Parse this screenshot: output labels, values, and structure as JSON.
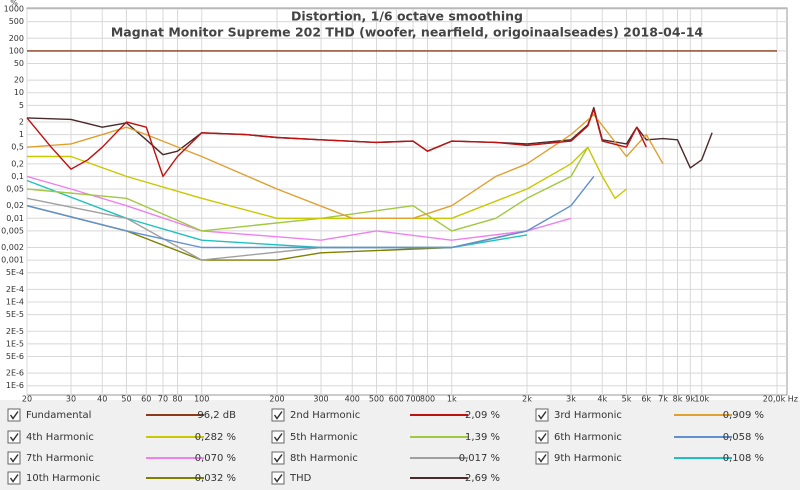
{
  "chart_data": {
    "type": "line",
    "title": "Distortion, 1/6 octave smoothing",
    "subtitle": "Magnat Monitor Supreme 202 THD (woofer, nearfield, origoinaalseades) 2018-04-14",
    "y_label": "%",
    "log_x": true,
    "log_y": true,
    "grid": true,
    "xlim": [
      20,
      20000
    ],
    "ylim": [
      6e-07,
      1000
    ],
    "xticks": [
      20,
      30,
      40,
      50,
      60,
      70,
      80,
      100,
      200,
      300,
      400,
      500,
      600,
      700,
      800,
      {
        "value": 1000,
        "label": "1k"
      },
      {
        "value": 2000,
        "label": "2k"
      },
      {
        "value": 3000,
        "label": "3k"
      },
      {
        "value": 4000,
        "label": "4k"
      },
      {
        "value": 5000,
        "label": "5k"
      },
      {
        "value": 6000,
        "label": "6k"
      },
      {
        "value": 7000,
        "label": "7k"
      },
      {
        "value": 8000,
        "label": "8k"
      },
      {
        "value": 9000,
        "label": "9k"
      },
      {
        "value": 10000,
        "label": "10k"
      },
      {
        "value": 20000,
        "label": "20,0k Hz"
      }
    ],
    "yticks": [
      1000,
      500,
      200,
      100,
      50,
      20,
      10,
      5,
      2,
      1,
      {
        "value": 0.5,
        "label": "0,5"
      },
      {
        "value": 0.2,
        "label": "0,2"
      },
      {
        "value": 0.1,
        "label": "0,1"
      },
      {
        "value": 0.05,
        "label": "0,05"
      },
      {
        "value": 0.02,
        "label": "0,02"
      },
      {
        "value": 0.01,
        "label": "0,01"
      },
      {
        "value": 0.005,
        "label": "0,005"
      },
      {
        "value": 0.002,
        "label": "0,002"
      },
      {
        "value": 0.001,
        "label": "0,001"
      },
      {
        "value": 0.0005,
        "label": "5E-4"
      },
      {
        "value": 0.0002,
        "label": "2E-4"
      },
      {
        "value": 0.0001,
        "label": "1E-4"
      },
      {
        "value": 5e-05,
        "label": "5E-5"
      },
      {
        "value": 2e-05,
        "label": "2E-5"
      },
      {
        "value": 1e-05,
        "label": "1E-5"
      },
      {
        "value": 5e-06,
        "label": "5E-6"
      },
      {
        "value": 2e-06,
        "label": "2E-6"
      },
      {
        "value": 1e-06,
        "label": "1E-6"
      }
    ],
    "series": [
      {
        "name": "Fundamental",
        "color": "#8b3a1a",
        "readout": "96,2 dB",
        "x": [
          20,
          20000
        ],
        "values": [
          100,
          100
        ]
      },
      {
        "name": "2nd Harmonic",
        "color": "#c01010",
        "readout": "2,09 %",
        "x": [
          20,
          25,
          30,
          35,
          40,
          50,
          60,
          70,
          80,
          100,
          150,
          200,
          300,
          500,
          700,
          800,
          1000,
          1500,
          2000,
          3000,
          3500,
          3700,
          4000,
          5000,
          5500,
          6000
        ],
        "values": [
          2.5,
          0.5,
          0.15,
          0.25,
          0.5,
          2,
          1.5,
          0.1,
          0.3,
          1.1,
          1,
          0.85,
          0.75,
          0.65,
          0.7,
          0.4,
          0.7,
          0.65,
          0.55,
          0.7,
          1.6,
          4,
          0.7,
          0.5,
          1.5,
          0.5
        ]
      },
      {
        "name": "3rd Harmonic",
        "color": "#e0a030",
        "readout": "0,909 %",
        "x": [
          20,
          30,
          40,
          50,
          60,
          100,
          200,
          400,
          700,
          1000,
          1500,
          2000,
          3000,
          3700,
          5000,
          6000,
          7000
        ],
        "values": [
          0.5,
          0.6,
          1,
          1.5,
          1,
          0.3,
          0.05,
          0.01,
          0.01,
          0.02,
          0.1,
          0.2,
          1,
          3,
          0.3,
          1,
          0.2
        ]
      },
      {
        "name": "4th Harmonic",
        "color": "#c8c800",
        "readout": "0,282 %",
        "x": [
          20,
          30,
          50,
          100,
          200,
          500,
          1000,
          2000,
          3000,
          3500,
          4000,
          4500,
          5000
        ],
        "values": [
          0.3,
          0.3,
          0.1,
          0.03,
          0.01,
          0.01,
          0.01,
          0.05,
          0.2,
          0.5,
          0.1,
          0.03,
          0.05
        ]
      },
      {
        "name": "5th Harmonic",
        "color": "#a0c840",
        "readout": "1,39 %",
        "x": [
          20,
          50,
          100,
          300,
          700,
          1000,
          1500,
          2000,
          3000,
          3500
        ],
        "values": [
          0.05,
          0.03,
          0.005,
          0.01,
          0.02,
          0.005,
          0.01,
          0.03,
          0.1,
          0.5
        ]
      },
      {
        "name": "6th Harmonic",
        "color": "#6090d0",
        "readout": "0,058 %",
        "x": [
          20,
          50,
          100,
          300,
          1000,
          2000,
          3000,
          3700
        ],
        "values": [
          0.02,
          0.005,
          0.002,
          0.002,
          0.002,
          0.005,
          0.02,
          0.1
        ]
      },
      {
        "name": "7th Harmonic",
        "color": "#f080f0",
        "readout": "0,070 %",
        "x": [
          20,
          30,
          50,
          100,
          300,
          500,
          1000,
          2000,
          3000
        ],
        "values": [
          0.1,
          0.05,
          0.02,
          0.005,
          0.003,
          0.005,
          0.003,
          0.005,
          0.01
        ]
      },
      {
        "name": "8th Harmonic",
        "color": "#a0a0a0",
        "readout": "0,017 %",
        "x": [
          20,
          50,
          100,
          300,
          1000,
          2000
        ],
        "values": [
          0.03,
          0.01,
          0.001,
          0.002,
          0.002,
          0.005
        ]
      },
      {
        "name": "9th Harmonic",
        "color": "#20c0c0",
        "readout": "0,108 %",
        "x": [
          20,
          50,
          100,
          300,
          1000,
          2000
        ],
        "values": [
          0.08,
          0.01,
          0.003,
          0.002,
          0.002,
          0.004
        ]
      },
      {
        "name": "10th Harmonic",
        "color": "#808000",
        "readout": "0,032 %",
        "x": [
          20,
          50,
          100,
          200,
          300,
          1000,
          2000
        ],
        "values": [
          0.02,
          0.005,
          0.001,
          0.001,
          0.0015,
          0.002,
          0.005
        ]
      },
      {
        "name": "THD",
        "color": "#4a2a2a",
        "readout": "2,69 %",
        "x": [
          20,
          30,
          40,
          50,
          60,
          70,
          80,
          100,
          150,
          200,
          300,
          500,
          700,
          800,
          1000,
          1500,
          2000,
          3000,
          3500,
          3700,
          4000,
          5000,
          5500,
          6000,
          7000,
          8000,
          9000,
          10000,
          11000
        ],
        "values": [
          2.5,
          2.3,
          1.5,
          1.9,
          0.75,
          0.33,
          0.4,
          1.1,
          1,
          0.85,
          0.75,
          0.65,
          0.7,
          0.4,
          0.7,
          0.65,
          0.6,
          0.75,
          1.7,
          4.4,
          0.75,
          0.6,
          1.5,
          0.75,
          0.8,
          0.75,
          0.16,
          0.25,
          1.1
        ]
      }
    ]
  }
}
